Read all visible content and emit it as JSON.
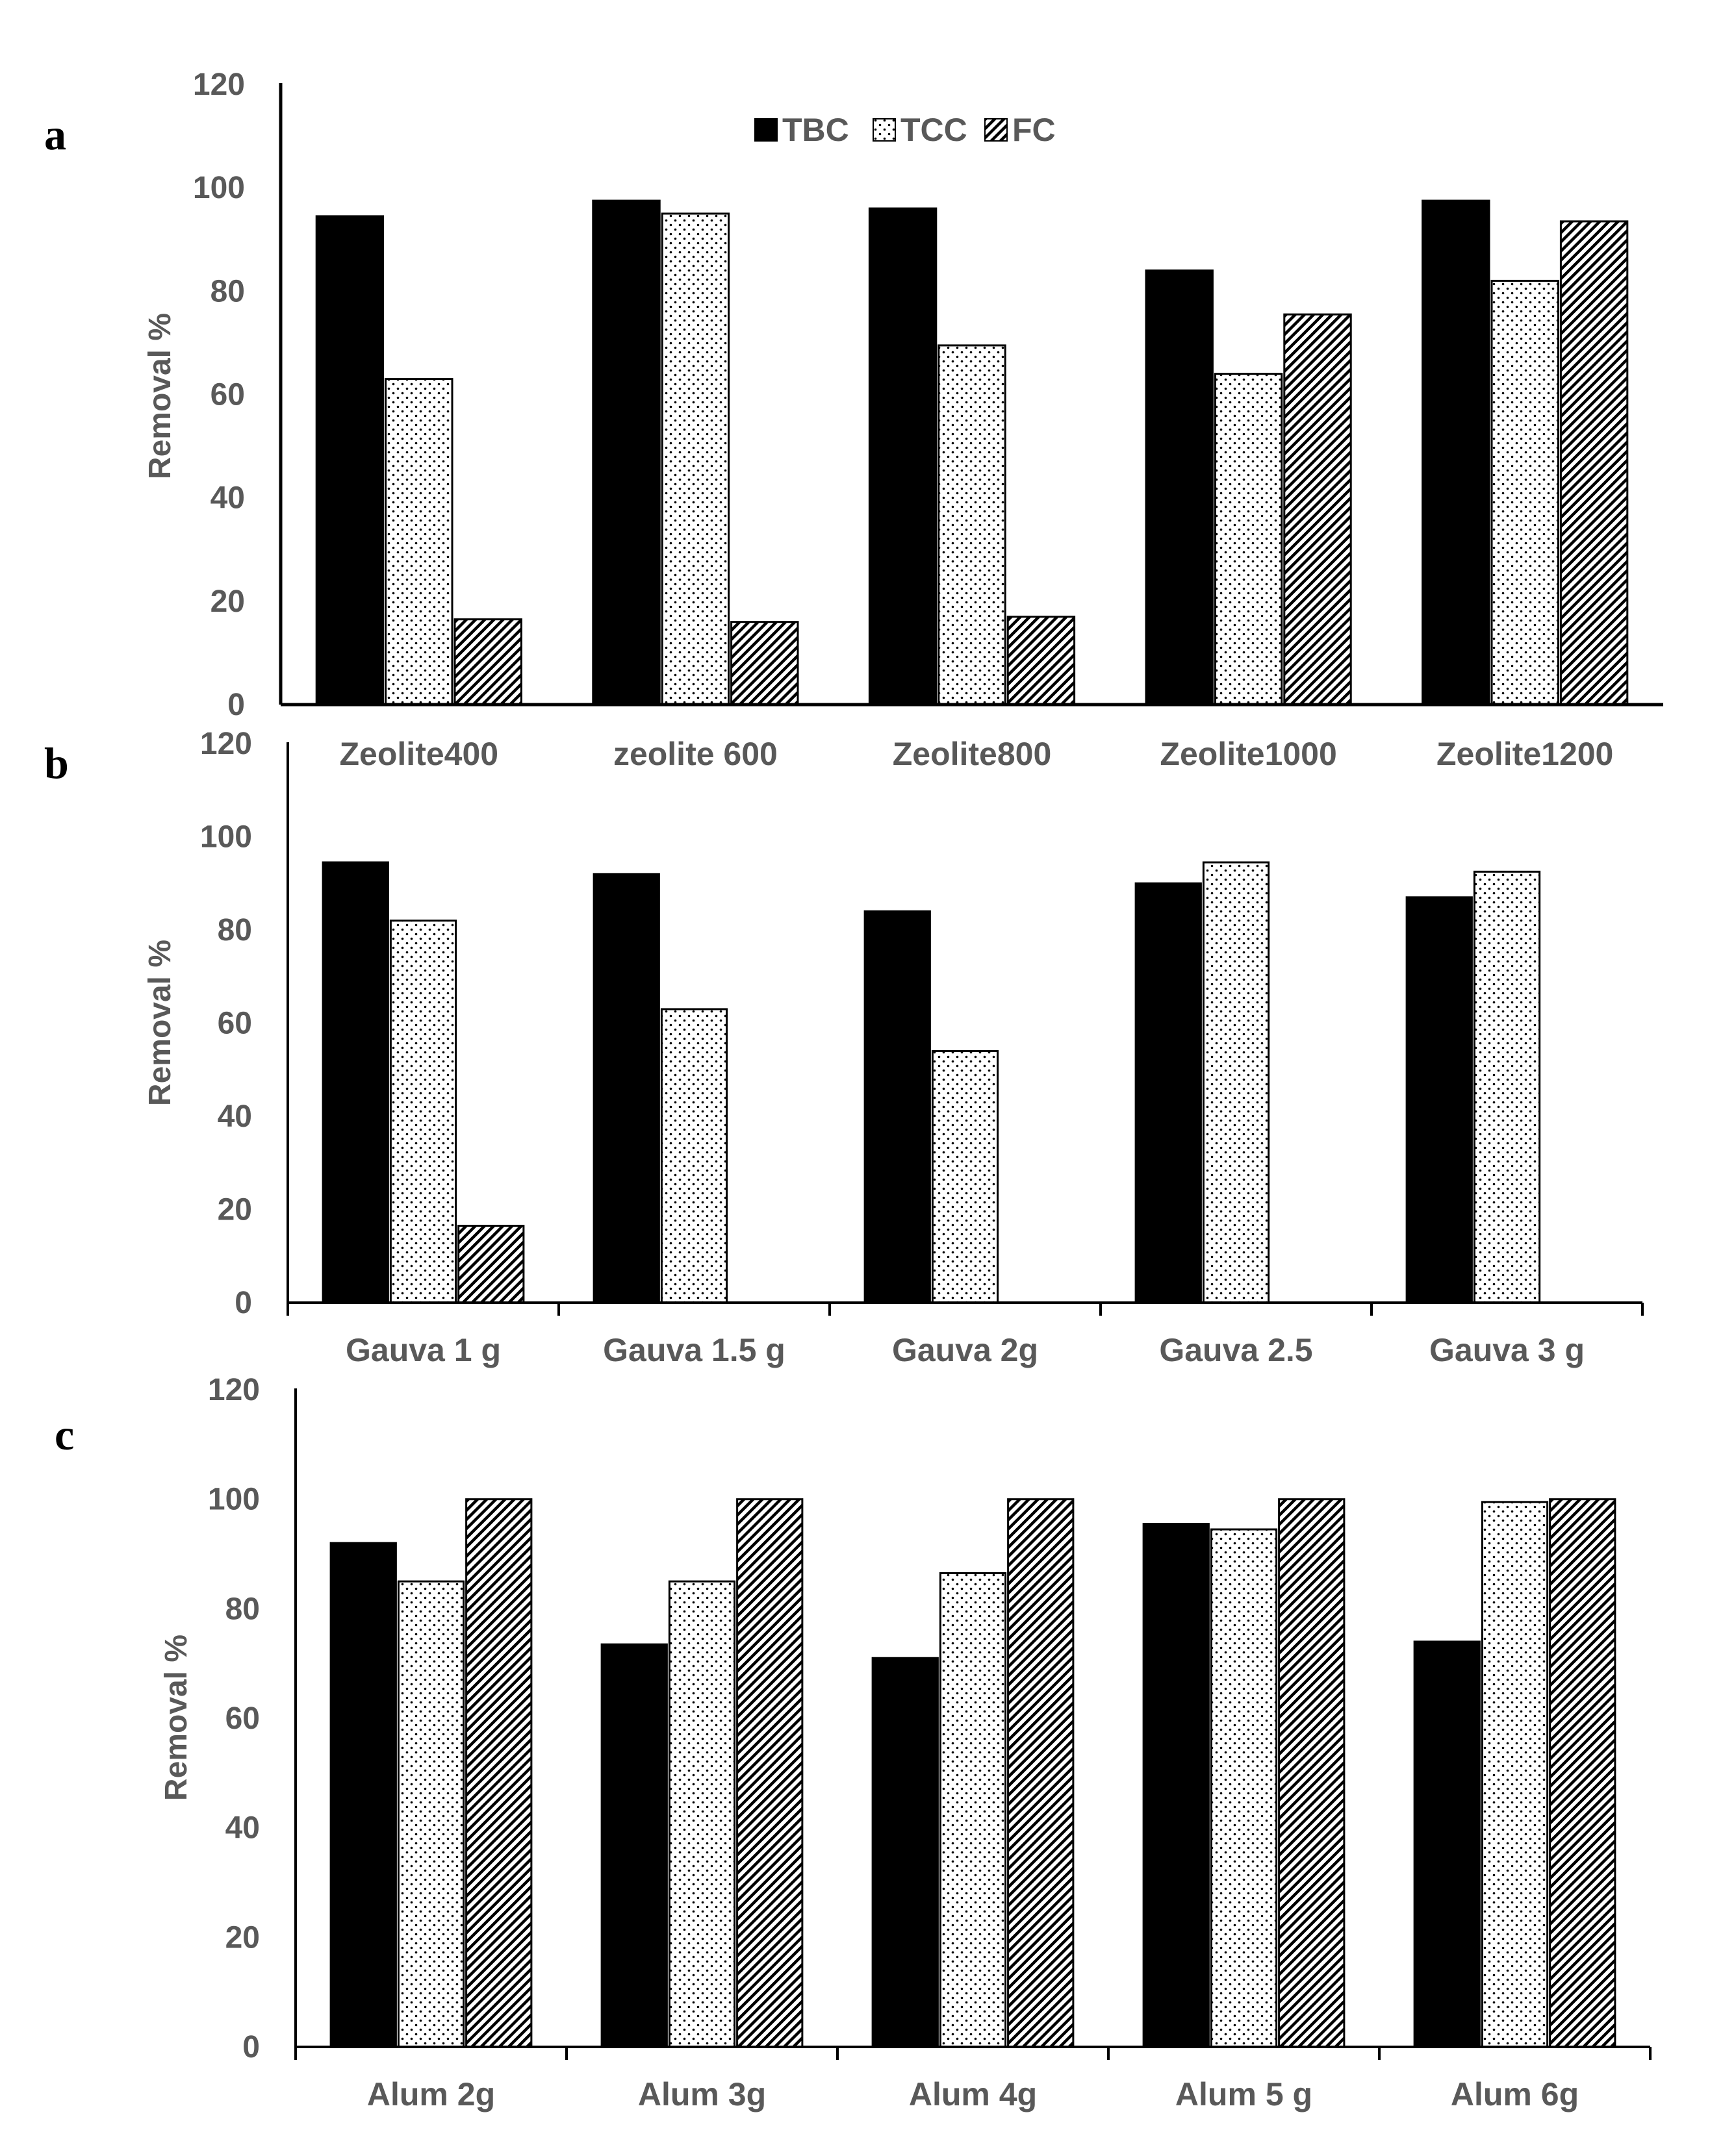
{
  "colors": {
    "tbc": "#000000",
    "axis": "#000000",
    "text": "#595959"
  },
  "legend": [
    {
      "name": "TBC",
      "pattern": "solid"
    },
    {
      "name": "TCC",
      "pattern": "dots"
    },
    {
      "name": "FC",
      "pattern": "hatch"
    }
  ],
  "chart_data": [
    {
      "panel": "a",
      "type": "bar",
      "ylabel": "Removal %",
      "ylim": [
        0,
        120
      ],
      "yticks": [
        0,
        20,
        40,
        60,
        80,
        100,
        120
      ],
      "categories": [
        "Zeolite400",
        "zeolite 600",
        "Zeolite800",
        "Zeolite1000",
        "Zeolite1200"
      ],
      "series": [
        {
          "name": "TBC",
          "values": [
            94.5,
            97.5,
            96,
            84,
            97.5
          ]
        },
        {
          "name": "TCC",
          "values": [
            63,
            95,
            69.5,
            64,
            82
          ]
        },
        {
          "name": "FC",
          "values": [
            16.5,
            16,
            17,
            75.5,
            93.5
          ]
        }
      ]
    },
    {
      "panel": "b",
      "type": "bar",
      "ylabel": "Removal %",
      "ylim": [
        0,
        120
      ],
      "yticks": [
        0,
        20,
        40,
        60,
        80,
        100,
        120
      ],
      "categories": [
        "Gauva 1 g",
        "Gauva 1.5 g",
        "Gauva 2g",
        "Gauva 2.5",
        "Gauva 3 g"
      ],
      "series": [
        {
          "name": "TBC",
          "values": [
            94.5,
            92,
            84,
            90,
            87
          ]
        },
        {
          "name": "TCC",
          "values": [
            82,
            63,
            54,
            94.5,
            92.5
          ]
        },
        {
          "name": "FC",
          "values": [
            16.5,
            0,
            0,
            0,
            0
          ]
        }
      ]
    },
    {
      "panel": "c",
      "type": "bar",
      "ylabel": "Removal %",
      "ylim": [
        0,
        120
      ],
      "yticks": [
        0,
        20,
        40,
        60,
        80,
        100,
        120
      ],
      "categories": [
        "Alum 2g",
        "Alum 3g",
        "Alum 4g",
        "Alum 5 g",
        "Alum 6g"
      ],
      "series": [
        {
          "name": "TBC",
          "values": [
            92,
            73.5,
            71,
            95.5,
            74
          ]
        },
        {
          "name": "TCC",
          "values": [
            85,
            85,
            86.5,
            94.5,
            99.5
          ]
        },
        {
          "name": "FC",
          "values": [
            100,
            100,
            100,
            100,
            100
          ]
        }
      ]
    }
  ]
}
